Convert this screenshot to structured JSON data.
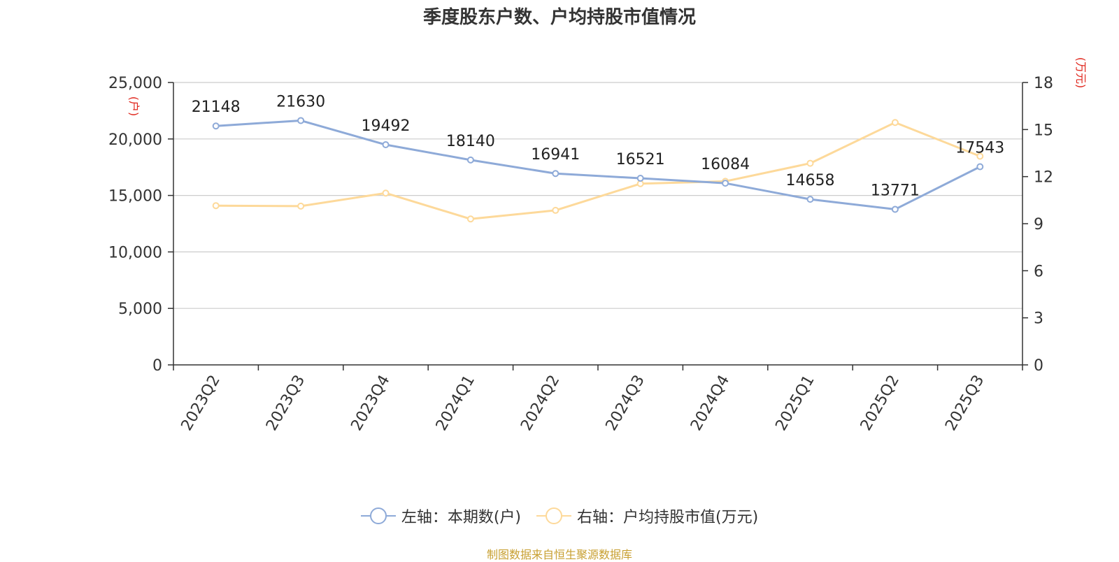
{
  "title": "季度股东户数、户均持股市值情况",
  "source": "制图数据来自恒生聚源数据库",
  "legend": {
    "left_label": "左轴：本期数(户)",
    "right_label": "右轴：户均持股市值(万元)"
  },
  "colors": {
    "left_series": "#8eaad8",
    "right_series": "#fdd99a",
    "axis_unit": "#e0251b",
    "grid": "#cccccc",
    "axis": "#333333"
  },
  "chart_data": {
    "type": "line",
    "categories": [
      "2023Q2",
      "2023Q3",
      "2023Q4",
      "2024Q1",
      "2024Q2",
      "2024Q3",
      "2024Q4",
      "2025Q1",
      "2025Q2",
      "2025Q3"
    ],
    "left_axis": {
      "unit": "(户)",
      "range": [
        0,
        25000
      ],
      "ticks": [
        "0",
        "5,000",
        "10,000",
        "15,000",
        "20,000",
        "25,000"
      ]
    },
    "right_axis": {
      "unit": "(万元)",
      "range": [
        0,
        18
      ],
      "ticks": [
        "0",
        "3",
        "6",
        "9",
        "12",
        "15",
        "18"
      ]
    },
    "grid": true,
    "legend_position": "bottom",
    "series": [
      {
        "name": "左轴：本期数(户)",
        "axis": "left",
        "values": [
          21148,
          21630,
          19492,
          18140,
          16941,
          16521,
          16084,
          14658,
          13771,
          17543
        ],
        "labels": [
          "21148",
          "21630",
          "19492",
          "18140",
          "16941",
          "16521",
          "16084",
          "14658",
          "13771",
          "17543"
        ]
      },
      {
        "name": "右轴：户均持股市值(万元)",
        "axis": "right",
        "values": [
          10.15,
          10.12,
          10.95,
          9.3,
          9.85,
          11.55,
          11.7,
          12.85,
          15.45,
          13.3
        ]
      }
    ]
  }
}
